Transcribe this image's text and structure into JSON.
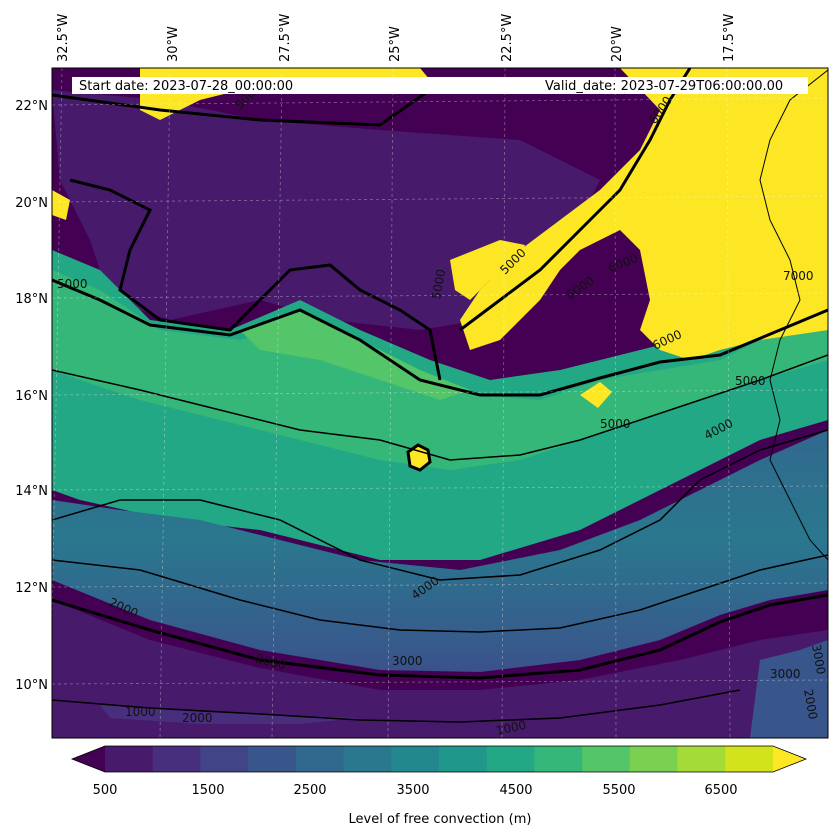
{
  "banner": {
    "start": "Start date: 2023-07-28_00:00:00",
    "valid": "Valid_date: 2023-07-29T06:00:00.00"
  },
  "lon_labels": [
    "32.5°W",
    "30°W",
    "27.5°W",
    "25°W",
    "22.5°W",
    "20°W",
    "17.5°W"
  ],
  "lat_labels": [
    "22°N",
    "20°N",
    "18°N",
    "16°N",
    "14°N",
    "12°N",
    "10°N"
  ],
  "contour_labels": [
    "5000",
    "5000",
    "6000",
    "6000",
    "6000",
    "7000",
    "6000",
    "5000",
    "4000",
    "4000",
    "3000",
    "3000",
    "2000",
    "1000",
    "2000",
    "1000",
    "2000",
    "3000",
    "2000",
    "5000",
    "5000",
    "5000"
  ],
  "colorbar": {
    "label": "Level of free convection (m)",
    "ticks": [
      "500",
      "1500",
      "2500",
      "3500",
      "4500",
      "5500",
      "6500"
    ],
    "colors": [
      "#440154",
      "#481a6c",
      "#472f7d",
      "#414487",
      "#39568c",
      "#31688e",
      "#2a788e",
      "#23888e",
      "#1f988b",
      "#22a884",
      "#35b779",
      "#54c568",
      "#7ad151",
      "#a5db36",
      "#d2e21b",
      "#fde725"
    ]
  },
  "map_colors": {
    "ocean_low": "#440154",
    "band_dark": "#481a6c",
    "mid_teal": "#2a788e",
    "teal": "#23888e",
    "green": "#22a884",
    "light_green": "#35b779",
    "yellow": "#fde725"
  }
}
